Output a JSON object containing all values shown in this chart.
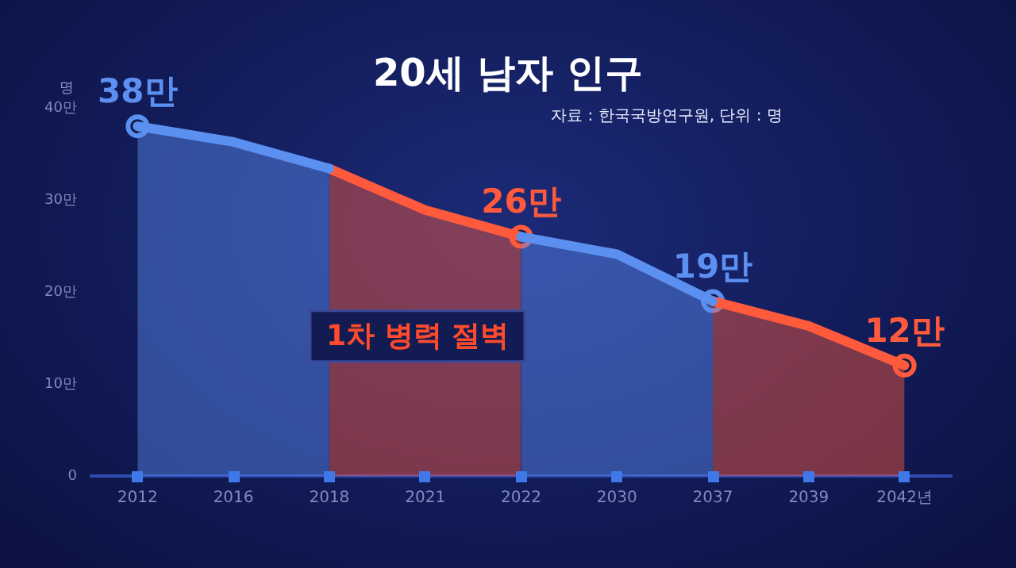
{
  "chart_data": {
    "type": "area",
    "title": "20세 남자 인구",
    "subtitle": "자료 : 한국국방연구원, 단위 : 명",
    "ylabel": "명",
    "categories": [
      "2012",
      "2016",
      "2018",
      "2021",
      "2022",
      "2030",
      "2037",
      "2039",
      "2042년"
    ],
    "series": [
      {
        "color": "#5b8ff0",
        "values": [
          38,
          36.3,
          33.4,
          null,
          26,
          24.1,
          19,
          null,
          null
        ]
      },
      {
        "color": "#ff5a3c",
        "values": [
          null,
          null,
          33.4,
          28.9,
          26,
          null,
          19,
          16.3,
          12
        ]
      },
      {
        "type": "scatter",
        "marker": "circle",
        "color": "#5b8ff0",
        "colors": [
          "#5b8ff0",
          null,
          null,
          null,
          "#ff5a3c",
          null,
          "#5b8ff0",
          null,
          "#ff5a3c"
        ],
        "values": [
          38,
          null,
          null,
          null,
          26,
          null,
          19,
          null,
          12
        ],
        "value_labels": [
          "38만",
          null,
          null,
          null,
          "26만",
          null,
          "19만",
          null,
          "12만"
        ]
      }
    ],
    "ylim": [
      0,
      40
    ],
    "yticks": [
      0,
      {
        "value": 10,
        "label": "10만"
      },
      {
        "value": 20,
        "label": "20만"
      },
      {
        "value": 30,
        "label": "30만"
      },
      {
        "value": 40,
        "label": "40만"
      }
    ],
    "grid": false,
    "legend": false,
    "annotations": [
      "1차 병력 절벽"
    ]
  }
}
